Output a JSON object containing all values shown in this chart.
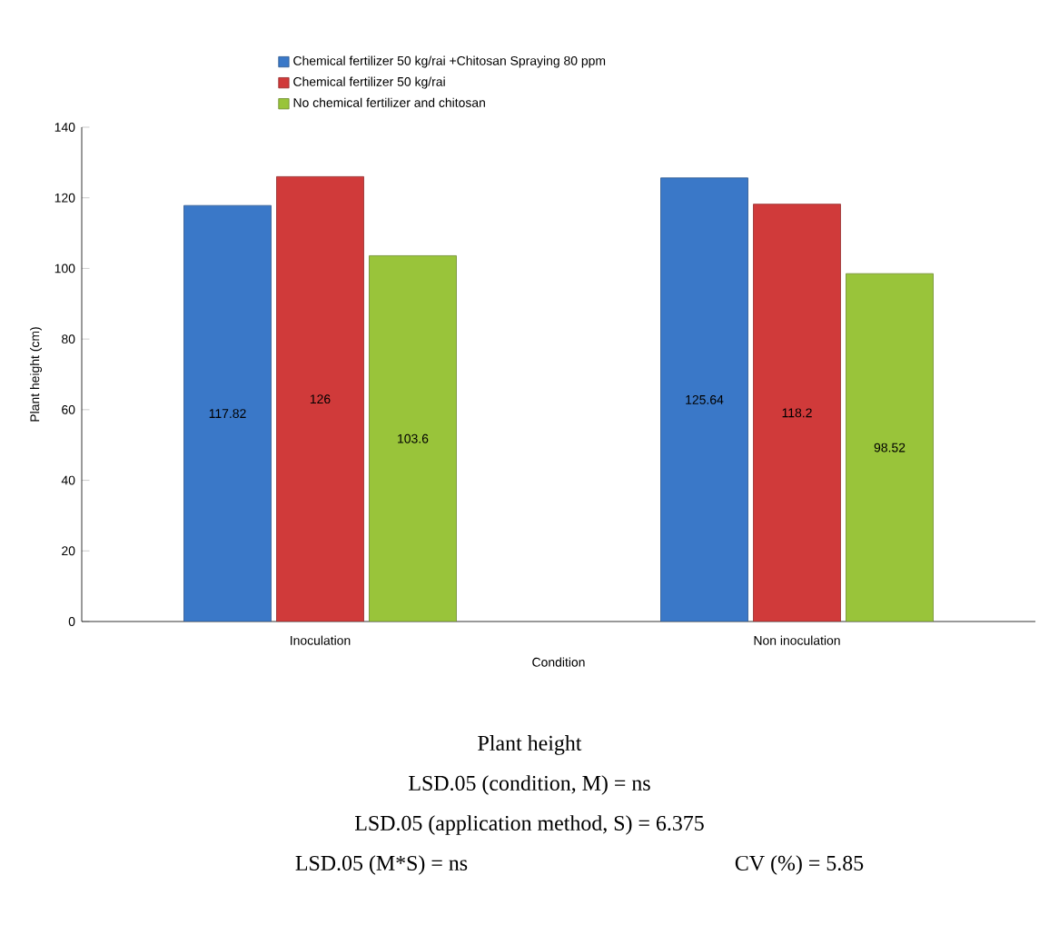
{
  "chart_data": {
    "type": "bar",
    "title": "Plant height",
    "xlabel": "Condition",
    "ylabel": "Plant height (cm)",
    "categories": [
      "Inoculation",
      "Non inoculation"
    ],
    "series": [
      {
        "name": "Chemical fertilizer 50 kg/rai +Chitosan Spraying  80 ppm",
        "color": "#3a78c8",
        "values": [
          117.82,
          125.64
        ]
      },
      {
        "name": "Chemical fertilizer 50 kg/rai",
        "color": "#d03a3a",
        "values": [
          126,
          118.2
        ]
      },
      {
        "name": "No chemical fertilizer and chitosan",
        "color": "#99c43a",
        "values": [
          103.6,
          98.52
        ]
      }
    ],
    "ylim": [
      0,
      140
    ],
    "yticks": [
      0,
      20,
      40,
      60,
      80,
      100,
      120,
      140
    ],
    "data_labels": true,
    "legend": "top",
    "annotations": [
      "LSD.05 (condition, M) = ns",
      "LSD.05 (application method, S) = 6.375",
      "LSD.05 (M*S) = ns",
      "CV (%) = 5.85"
    ]
  }
}
